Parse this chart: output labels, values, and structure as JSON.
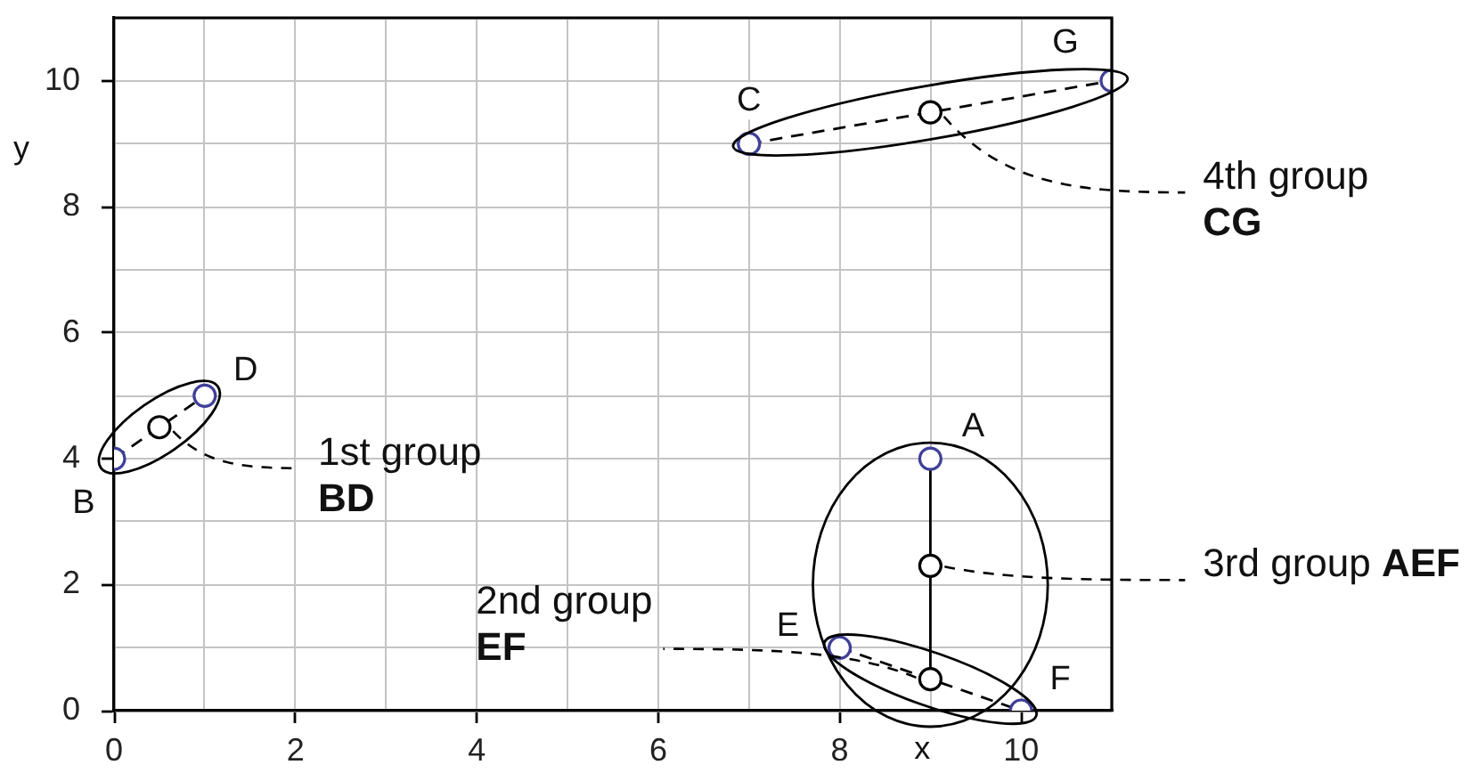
{
  "chart_data": {
    "type": "scatter",
    "xlabel": "x",
    "ylabel": "y",
    "xlim": [
      0,
      11
    ],
    "ylim": [
      0,
      11
    ],
    "xticks": [
      0,
      {
        "value": 1,
        "label": null
      },
      2,
      {
        "value": 3,
        "label": null
      },
      4,
      {
        "value": 5,
        "label": null
      },
      6,
      {
        "value": 7,
        "label": null
      },
      8,
      {
        "value": 9,
        "label": null
      },
      10,
      {
        "value": 11,
        "label": null
      }
    ],
    "yticks": [
      0,
      {
        "value": 1,
        "label": null
      },
      2,
      {
        "value": 3,
        "label": null
      },
      4,
      {
        "value": 5,
        "label": null
      },
      6,
      {
        "value": 7,
        "label": null
      },
      8,
      {
        "value": 9,
        "label": null
      },
      10,
      {
        "value": 11,
        "label": null
      }
    ],
    "grid": true,
    "series": [
      {
        "type": "line",
        "x": [
          0,
          0.5,
          1
        ],
        "values": [
          4,
          4.5,
          5
        ],
        "color": "#000000",
        "line_style": "dashed",
        "marker": "none"
      },
      {
        "type": "line",
        "x": [
          8,
          9,
          10
        ],
        "values": [
          1,
          0.5,
          0
        ],
        "color": "#000000",
        "line_style": "dashed",
        "marker": "none"
      },
      {
        "type": "line",
        "x": [
          9,
          9,
          9
        ],
        "values": [
          4,
          2.3,
          0.5
        ],
        "color": "#000000",
        "line_style": "solid",
        "marker": "none"
      },
      {
        "type": "line",
        "x": [
          7,
          9,
          11
        ],
        "values": [
          9,
          9.5,
          10
        ],
        "color": "#000000",
        "line_style": "dashed",
        "marker": "none"
      },
      {
        "type": "scatter",
        "x": [
          9,
          0,
          7,
          1,
          8,
          10,
          11
        ],
        "values": [
          4,
          4,
          9,
          5,
          1,
          0,
          10
        ],
        "color": "#3f3f99",
        "marker": "circle"
      },
      {
        "type": "scatter",
        "x": [
          0.5,
          9,
          9,
          9
        ],
        "values": [
          4.5,
          0.5,
          2.3,
          9.5
        ],
        "color": "#000000",
        "marker": "circle"
      }
    ],
    "annotations": [
      {
        "text": "A",
        "x": 9,
        "y": 4
      },
      {
        "text": "B",
        "x": 0,
        "y": 4
      },
      {
        "text": "C",
        "x": 7,
        "y": 9
      },
      {
        "text": "D",
        "x": 1,
        "y": 5
      },
      {
        "text": "E",
        "x": 8,
        "y": 1
      },
      {
        "text": "F",
        "x": 10,
        "y": 0
      },
      {
        "text": "G",
        "x": 11,
        "y": 10
      },
      {
        "text": "1st group\nBD",
        "x": 0.5,
        "y": 4.5
      },
      {
        "text": "2nd group\nEF",
        "x": 9,
        "y": 0.5
      },
      {
        "text": "3rd group AEF",
        "x": 9,
        "y": 2.3
      },
      {
        "text": "4th group\nCG",
        "x": 9,
        "y": 9.5
      }
    ]
  }
}
